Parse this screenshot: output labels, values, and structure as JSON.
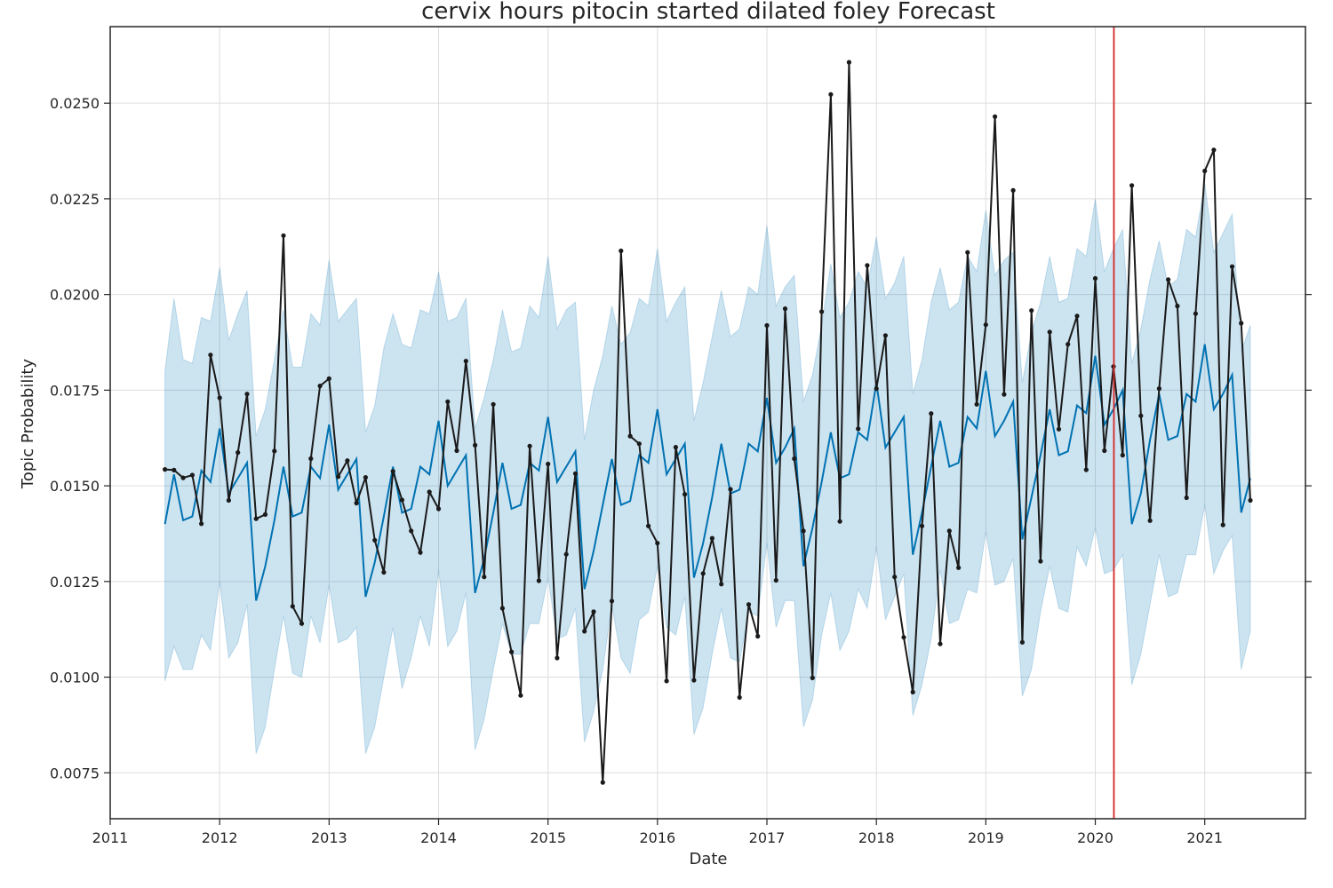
{
  "chart_data": {
    "type": "line",
    "title": "cervix hours pitocin started dilated foley Forecast",
    "xlabel": "Date",
    "ylabel": "Topic Probability",
    "xlim": [
      2011.0,
      2021.92
    ],
    "ylim": [
      0.0063,
      0.027
    ],
    "x_ticks": [
      "2011",
      "2012",
      "2013",
      "2014",
      "2015",
      "2016",
      "2017",
      "2018",
      "2019",
      "2020",
      "2021"
    ],
    "y_ticks": [
      "0.0075",
      "0.0100",
      "0.0125",
      "0.0150",
      "0.0175",
      "0.0200",
      "0.0225",
      "0.0250"
    ],
    "grid": true,
    "vline": {
      "x": 2020.17,
      "color": "#d62728"
    },
    "colors": {
      "forecast": "#0072B2",
      "band": "#0072B2",
      "actual": "#1a1a1a"
    },
    "start_year": 2011.5,
    "series": [
      {
        "name": "forecast",
        "style": "line",
        "values": [
          0.014,
          0.0153,
          0.0141,
          0.0142,
          0.0154,
          0.0151,
          0.0165,
          0.0148,
          0.0152,
          0.0156,
          0.012,
          0.0129,
          0.0141,
          0.0155,
          0.0142,
          0.0143,
          0.0155,
          0.0152,
          0.0166,
          0.0149,
          0.0153,
          0.0157,
          0.0121,
          0.013,
          0.0142,
          0.0155,
          0.0143,
          0.0144,
          0.0155,
          0.0153,
          0.0167,
          0.015,
          0.0154,
          0.0158,
          0.0122,
          0.0131,
          0.0143,
          0.0156,
          0.0144,
          0.0145,
          0.0156,
          0.0154,
          0.0168,
          0.0151,
          0.0155,
          0.0159,
          0.0123,
          0.0133,
          0.0145,
          0.0157,
          0.0145,
          0.0146,
          0.0158,
          0.0156,
          0.017,
          0.0153,
          0.0157,
          0.0161,
          0.0126,
          0.0135,
          0.0147,
          0.0161,
          0.0148,
          0.0149,
          0.0161,
          0.0159,
          0.0173,
          0.0156,
          0.016,
          0.0165,
          0.0129,
          0.0139,
          0.0151,
          0.0164,
          0.0152,
          0.0153,
          0.0164,
          0.0162,
          0.0177,
          0.016,
          0.0164,
          0.0168,
          0.0132,
          0.0143,
          0.0155,
          0.0167,
          0.0155,
          0.0156,
          0.0168,
          0.0165,
          0.018,
          0.0163,
          0.0167,
          0.0172,
          0.0136,
          0.0147,
          0.0158,
          0.017,
          0.0158,
          0.0159,
          0.0171,
          0.0169,
          0.0184,
          0.0166,
          0.017,
          0.0175,
          0.014,
          0.0148,
          0.0162,
          0.0174,
          0.0162,
          0.0163,
          0.0174,
          0.0172,
          0.0187,
          0.017,
          0.0174,
          0.0179,
          0.0143,
          0.0152
        ]
      },
      {
        "name": "upper",
        "style": "band",
        "values": [
          0.018,
          0.0199,
          0.0183,
          0.0182,
          0.0194,
          0.0193,
          0.0207,
          0.0188,
          0.0195,
          0.0201,
          0.0163,
          0.017,
          0.0183,
          0.0196,
          0.0181,
          0.0181,
          0.0195,
          0.0192,
          0.0209,
          0.0193,
          0.0196,
          0.0199,
          0.0164,
          0.0171,
          0.0186,
          0.0195,
          0.0187,
          0.0186,
          0.0196,
          0.0195,
          0.0206,
          0.0193,
          0.0194,
          0.0199,
          0.0165,
          0.0173,
          0.0183,
          0.0196,
          0.0185,
          0.0186,
          0.0197,
          0.0194,
          0.021,
          0.0191,
          0.0196,
          0.0198,
          0.0162,
          0.0175,
          0.0184,
          0.0197,
          0.0187,
          0.019,
          0.0199,
          0.0197,
          0.0212,
          0.0193,
          0.0198,
          0.0202,
          0.0167,
          0.0177,
          0.0189,
          0.0201,
          0.0189,
          0.0191,
          0.0202,
          0.02,
          0.0218,
          0.0197,
          0.0202,
          0.0205,
          0.0172,
          0.0179,
          0.0192,
          0.0208,
          0.0194,
          0.0198,
          0.0206,
          0.0202,
          0.0215,
          0.0199,
          0.0203,
          0.021,
          0.0174,
          0.0183,
          0.0198,
          0.0207,
          0.0196,
          0.0198,
          0.021,
          0.0206,
          0.0222,
          0.0205,
          0.0209,
          0.0211,
          0.0177,
          0.019,
          0.0198,
          0.021,
          0.0198,
          0.0199,
          0.0212,
          0.021,
          0.0225,
          0.0206,
          0.0212,
          0.0217,
          0.0182,
          0.0191,
          0.0204,
          0.0214,
          0.0202,
          0.0204,
          0.0217,
          0.0215,
          0.0229,
          0.0211,
          0.0216,
          0.0221,
          0.0185,
          0.0192
        ]
      },
      {
        "name": "lower",
        "style": "band",
        "values": [
          0.0099,
          0.0108,
          0.0102,
          0.0102,
          0.0111,
          0.0107,
          0.0125,
          0.0105,
          0.0109,
          0.0119,
          0.008,
          0.0087,
          0.0102,
          0.0116,
          0.0101,
          0.01,
          0.0116,
          0.0109,
          0.0124,
          0.0109,
          0.011,
          0.0113,
          0.008,
          0.0087,
          0.01,
          0.0113,
          0.0097,
          0.0105,
          0.0116,
          0.0108,
          0.0128,
          0.0108,
          0.0112,
          0.0122,
          0.0081,
          0.0089,
          0.0102,
          0.0114,
          0.0106,
          0.0106,
          0.0114,
          0.0114,
          0.0126,
          0.011,
          0.0111,
          0.0118,
          0.0083,
          0.0091,
          0.0102,
          0.0119,
          0.0105,
          0.0101,
          0.0115,
          0.0117,
          0.0129,
          0.0113,
          0.0111,
          0.0121,
          0.0085,
          0.0092,
          0.0106,
          0.0118,
          0.0105,
          0.0104,
          0.0117,
          0.0116,
          0.0135,
          0.0113,
          0.012,
          0.012,
          0.0087,
          0.0094,
          0.0111,
          0.0122,
          0.0107,
          0.0112,
          0.0123,
          0.0118,
          0.0134,
          0.0115,
          0.0121,
          0.0127,
          0.009,
          0.0098,
          0.011,
          0.0128,
          0.0114,
          0.0115,
          0.0123,
          0.0122,
          0.0138,
          0.0124,
          0.0125,
          0.0131,
          0.0095,
          0.0102,
          0.0117,
          0.0129,
          0.0118,
          0.0117,
          0.0134,
          0.0129,
          0.0139,
          0.0127,
          0.0128,
          0.0132,
          0.0098,
          0.0106,
          0.0119,
          0.0132,
          0.0121,
          0.0122,
          0.0132,
          0.0132,
          0.0145,
          0.0127,
          0.0133,
          0.0137,
          0.0102,
          0.0112
        ]
      },
      {
        "name": "actual",
        "style": "line-markers",
        "values": [
          0.01543,
          0.01541,
          0.01521,
          0.01528,
          0.01401,
          0.01842,
          0.0173,
          0.01462,
          0.01587,
          0.0174,
          0.01414,
          0.01425,
          0.01591,
          0.02154,
          0.01185,
          0.0114,
          0.01571,
          0.01761,
          0.0178,
          0.01524,
          0.01566,
          0.01455,
          0.01522,
          0.01358,
          0.01274,
          0.01538,
          0.01463,
          0.01382,
          0.01326,
          0.01484,
          0.0144,
          0.0172,
          0.01592,
          0.01826,
          0.01606,
          0.01262,
          0.01713,
          0.0118,
          0.01066,
          0.00952,
          0.01604,
          0.01252,
          0.01557,
          0.0105,
          0.01321,
          0.01532,
          0.0112,
          0.01171,
          0.00725,
          0.01199,
          0.02114,
          0.0163,
          0.0161,
          0.01395,
          0.0135,
          0.0099,
          0.01601,
          0.01478,
          0.00992,
          0.01271,
          0.01363,
          0.01243,
          0.01491,
          0.00947,
          0.0119,
          0.01107,
          0.01919,
          0.01253,
          0.01963,
          0.01571,
          0.01382,
          0.00998,
          0.01955,
          0.02523,
          0.01407,
          0.02607,
          0.01649,
          0.02076,
          0.01754,
          0.01893,
          0.01262,
          0.01104,
          0.00961,
          0.01395,
          0.01689,
          0.01087,
          0.01382,
          0.01286,
          0.0211,
          0.01713,
          0.01921,
          0.02465,
          0.01739,
          0.02272,
          0.01091,
          0.01958,
          0.01303,
          0.01902,
          0.01648,
          0.0187,
          0.01944,
          0.01542,
          0.02042,
          0.01592,
          0.01812,
          0.0158,
          0.02285,
          0.01683,
          0.01409,
          0.01754,
          0.02039,
          0.0197,
          0.01469,
          0.0195,
          0.02323,
          0.02378,
          0.01398,
          0.02073,
          0.01925,
          0.01462
        ]
      }
    ]
  }
}
